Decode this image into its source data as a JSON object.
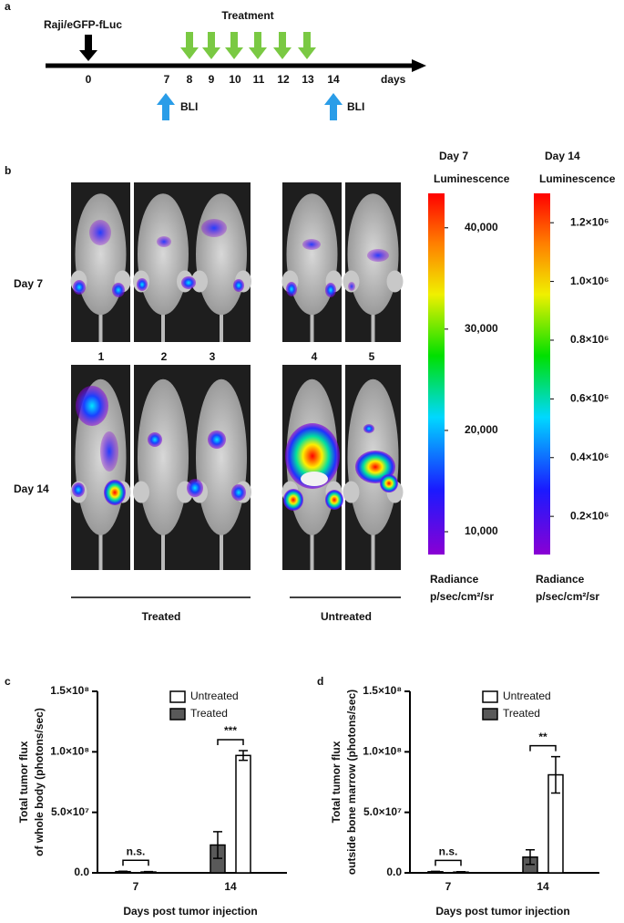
{
  "timeline": {
    "panel": "a",
    "cells": "Raji/eGFP-fLuc",
    "treatment": "Treatment",
    "days": [
      0,
      7,
      8,
      9,
      10,
      11,
      12,
      13,
      14
    ],
    "unit": "days",
    "imaging": [
      "BLI",
      "BLI"
    ]
  },
  "imaging": {
    "panel": "b",
    "rows": [
      "Day 7",
      "Day 14"
    ],
    "mice": [
      "1",
      "2",
      "3",
      "4",
      "5"
    ],
    "groups": [
      "Treated",
      "Untreated"
    ]
  },
  "chart_data": [
    {
      "type": "bar",
      "panel": "c",
      "ylabel": [
        "Total tumor flux",
        "of whole body (photons/sec)"
      ],
      "xlabel": "Days post tumor injection",
      "categories": [
        "7",
        "14"
      ],
      "series": [
        {
          "name": "Treated",
          "color": "#595959",
          "values": [
            1000000,
            23000000
          ],
          "errors": [
            300000,
            11000000
          ]
        },
        {
          "name": "Untreated",
          "color": "#ffffff",
          "values": [
            700000,
            97000000
          ],
          "errors": [
            300000,
            4000000
          ]
        }
      ],
      "annotations": [
        "n.s.",
        "***"
      ],
      "ylim": [
        0,
        150000000
      ],
      "yticks": [
        {
          "value": 0,
          "label": "0.0"
        },
        {
          "value": 50000000,
          "label": "5.0×10⁷"
        },
        {
          "value": 100000000,
          "label": "1.0×10⁸"
        },
        {
          "value": 150000000,
          "label": "1.5×10⁸"
        }
      ],
      "legend": "top-left"
    },
    {
      "type": "bar",
      "panel": "d",
      "ylabel": [
        "Total tumor flux",
        "outside bone marrow (photons/sec)"
      ],
      "xlabel": "Days post tumor injection",
      "categories": [
        "7",
        "14"
      ],
      "series": [
        {
          "name": "Treated",
          "color": "#595959",
          "values": [
            900000,
            13000000
          ],
          "errors": [
            300000,
            6000000
          ]
        },
        {
          "name": "Untreated",
          "color": "#ffffff",
          "values": [
            600000,
            81000000
          ],
          "errors": [
            300000,
            15000000
          ]
        }
      ],
      "annotations": [
        "n.s.",
        "**"
      ],
      "ylim": [
        0,
        150000000
      ],
      "yticks": [
        {
          "value": 0,
          "label": "0.0"
        },
        {
          "value": 50000000,
          "label": "5.0×10⁷"
        },
        {
          "value": 100000000,
          "label": "1.0×10⁸"
        },
        {
          "value": 150000000,
          "label": "1.5×10⁸"
        }
      ],
      "legend": "top-left"
    },
    {
      "type": "colorbar",
      "title": "Day 7",
      "label": "Luminescence",
      "unit": [
        "Radiance",
        "p/sec/cm²/sr"
      ],
      "ylim": [
        7750,
        43400
      ],
      "yticks": [
        {
          "value": 10000,
          "label": "10,000"
        },
        {
          "value": 20000,
          "label": "20,000"
        },
        {
          "value": 30000,
          "label": "30,000"
        },
        {
          "value": 40000,
          "label": "40,000"
        }
      ]
    },
    {
      "type": "colorbar",
      "title": "Day 14",
      "label": "Luminescence",
      "unit": [
        "Radiance",
        "p/sec/cm²/sr"
      ],
      "ylim": [
        70000,
        1300000
      ],
      "yticks": [
        {
          "value": 200000,
          "label": "0.2×10⁶"
        },
        {
          "value": 400000,
          "label": "0.4×10⁶"
        },
        {
          "value": 600000,
          "label": "0.6×10⁶"
        },
        {
          "value": 800000,
          "label": "0.8×10⁶"
        },
        {
          "value": 1000000,
          "label": "1.0×10⁶"
        },
        {
          "value": 1200000,
          "label": "1.2×10⁶"
        }
      ]
    }
  ]
}
